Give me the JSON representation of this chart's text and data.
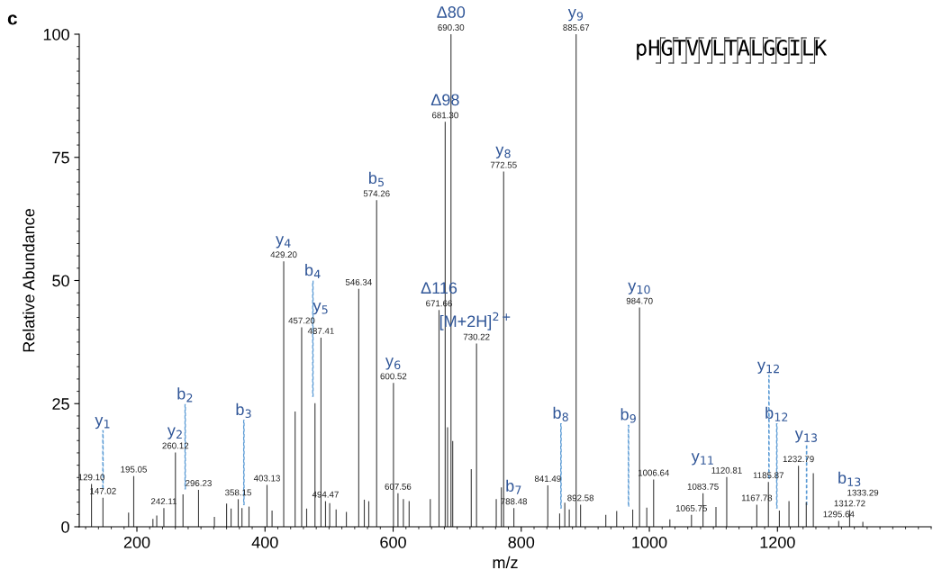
{
  "chart_data": {
    "type": "bar",
    "xlabel": "m/z",
    "ylabel": "Relative Abundance",
    "xlim": [
      110,
      1440
    ],
    "ylim": [
      0,
      100
    ],
    "xticks": [
      200,
      400,
      600,
      800,
      1000,
      1200
    ],
    "yticks": [
      0,
      25,
      50,
      75,
      100
    ],
    "grid": false,
    "series": [
      {
        "color": "#404040",
        "x": [
          129.1,
          147.02,
          187,
          195.05,
          225,
          231,
          242.11,
          260.12,
          272,
          296.23,
          321,
          340,
          347,
          358.15,
          364,
          375,
          403.13,
          411,
          429.2,
          447,
          457.2,
          465,
          478,
          487.41,
          494.47,
          501,
          511,
          527,
          546.34,
          555,
          562,
          574.26,
          600.52,
          607.56,
          616,
          625,
          658,
          671.66,
          681.3,
          685,
          690.3,
          693,
          722,
          730.22,
          761,
          769,
          772.55,
          788.48,
          841.49,
          860,
          868,
          875,
          885.67,
          892.58,
          932,
          949,
          974,
          984.7,
          996,
          1006.64,
          1032,
          1065.75,
          1083.75,
          1104,
          1120.81,
          1167.78,
          1185.87,
          1203,
          1218,
          1232.79,
          1245,
          1256,
          1295.64,
          1312.72,
          1333.29
        ],
        "values": [
          8.7,
          5.9,
          2.9,
          10.3,
          1.6,
          2.3,
          3.8,
          15.1,
          6.6,
          7.5,
          2.0,
          4.7,
          3.7,
          5.6,
          3.8,
          4.1,
          8.5,
          3.3,
          53.9,
          23.4,
          40.5,
          3.7,
          25.1,
          38.4,
          5.2,
          4.8,
          3.5,
          3.0,
          48.3,
          5.5,
          5.2,
          66.3,
          29.2,
          6.8,
          5.6,
          5.2,
          5.6,
          44.0,
          82.2,
          20.2,
          100,
          17.4,
          11.7,
          37.2,
          5.6,
          8.0,
          72.1,
          3.8,
          8.4,
          2.7,
          4.9,
          3.5,
          100,
          4.5,
          2.4,
          3.2,
          3.5,
          44.5,
          3.9,
          9.6,
          1.5,
          2.4,
          6.8,
          4.0,
          10.1,
          4.5,
          9.1,
          3.3,
          5.2,
          12.4,
          5.0,
          10.9,
          1.2,
          3.4,
          1.0
        ]
      },
      {
        "type": "bar",
        "color": "#5b9bd5",
        "line_style": "dashed",
        "x": [
          147,
          275.4,
          367,
          474.7,
          862,
          967.5,
          1186.7,
          1199,
          1245.5
        ],
        "base": [
          7.7,
          7.7,
          4.5,
          26.5,
          3.8,
          4.2,
          9.8,
          3.8,
          4.5
        ],
        "values": [
          11.8,
          17.1,
          17.1,
          23.4,
          17.1,
          16.4,
          20.9,
          17.1,
          12.2
        ]
      }
    ],
    "annotations": [
      "c",
      "pHGTVVLTALGGILK",
      {
        "text": "129.10",
        "x": 129.1,
        "y": 8.7
      },
      {
        "text": "147.02",
        "x": 147.02,
        "y": 5.9
      },
      {
        "text": "195.05",
        "x": 195.05,
        "y": 10.3
      },
      {
        "text": "242.11",
        "x": 242.11,
        "y": 3.8
      },
      {
        "text": "260.12",
        "x": 260.12,
        "y": 15.1
      },
      {
        "text": "296.23",
        "x": 296.23,
        "y": 7.5
      },
      {
        "text": "358.15",
        "x": 358.15,
        "y": 5.6
      },
      {
        "text": "403.13",
        "x": 403.13,
        "y": 8.5
      },
      {
        "text": "429.20",
        "x": 429.2,
        "y": 53.9
      },
      {
        "text": "457.20",
        "x": 457.2,
        "y": 40.5
      },
      {
        "text": "487.41",
        "x": 487.41,
        "y": 38.4
      },
      {
        "text": "494.47",
        "x": 494.47,
        "y": 5.2
      },
      {
        "text": "546.34",
        "x": 546.34,
        "y": 48.3
      },
      {
        "text": "574.26",
        "x": 574.26,
        "y": 66.3
      },
      {
        "text": "600.52",
        "x": 600.52,
        "y": 29.2
      },
      {
        "text": "607.56",
        "x": 607.56,
        "y": 6.8
      },
      {
        "text": "671.66",
        "x": 671.66,
        "y": 44.0
      },
      {
        "text": "681.30",
        "x": 681.3,
        "y": 82.2
      },
      {
        "text": "690.30",
        "x": 690.3,
        "y": 100
      },
      {
        "text": "730.22",
        "x": 730.22,
        "y": 37.2
      },
      {
        "text": "772.55",
        "x": 772.55,
        "y": 72.1
      },
      {
        "text": "788.48",
        "x": 788.48,
        "y": 3.8
      },
      {
        "text": "841.49",
        "x": 841.49,
        "y": 8.4
      },
      {
        "text": "885.67",
        "x": 885.67,
        "y": 100
      },
      {
        "text": "892.58",
        "x": 892.58,
        "y": 4.5
      },
      {
        "text": "984.70",
        "x": 984.7,
        "y": 44.5
      },
      {
        "text": "1006.64",
        "x": 1006.64,
        "y": 9.6
      },
      {
        "text": "1065.75",
        "x": 1065.75,
        "y": 2.4
      },
      {
        "text": "1083.75",
        "x": 1083.75,
        "y": 6.8
      },
      {
        "text": "1120.81",
        "x": 1120.81,
        "y": 10.1
      },
      {
        "text": "1167.78",
        "x": 1167.78,
        "y": 4.5
      },
      {
        "text": "1185.87",
        "x": 1185.87,
        "y": 9.1
      },
      {
        "text": "1232.79",
        "x": 1232.79,
        "y": 12.4
      },
      {
        "text": "1295.64",
        "x": 1295.64,
        "y": 1.2
      },
      {
        "text": "1312.72",
        "x": 1312.72,
        "y": 3.4
      },
      {
        "text": "1333.29",
        "x": 1333.29,
        "y": 1.0
      },
      {
        "text": "y$_{1}$",
        "x": 147,
        "y": 19.5
      },
      {
        "text": "y$_{2}$",
        "x": 260.12,
        "y": 15.1
      },
      {
        "text": "b$_{2}$",
        "x": 275.4,
        "y": 24.8
      },
      {
        "text": "b$_{3}$",
        "x": 367,
        "y": 21.6
      },
      {
        "text": "y$_{4}$",
        "x": 429.2,
        "y": 53.9
      },
      {
        "text": "b$_{4}$",
        "x": 474.7,
        "y": 49.9
      },
      {
        "text": "y$_{5}$",
        "x": 487.41,
        "y": 38.4
      },
      {
        "text": "b$_{5}$",
        "x": 574.26,
        "y": 66.3
      },
      {
        "text": "y$_{6}$",
        "x": 600.52,
        "y": 29.2
      },
      {
        "text": "Δ116",
        "x": 671.66,
        "y": 44.0
      },
      {
        "text": "Δ98",
        "x": 681.3,
        "y": 82.2
      },
      {
        "text": "Δ80",
        "x": 690.3,
        "y": 100
      },
      {
        "text": "[M+2H]$^{2+}$",
        "x": 730.22,
        "y": 37.2
      },
      {
        "text": "y$_{8}$",
        "x": 772.55,
        "y": 72.1
      },
      {
        "text": "b$_{7}$",
        "x": 788.48,
        "y": 3.8
      },
      {
        "text": "b$_{8}$",
        "x": 862,
        "y": 20.9
      },
      {
        "text": "y$_{9}$",
        "x": 885.67,
        "y": 100
      },
      {
        "text": "b$_{9}$",
        "x": 967.5,
        "y": 20.6
      },
      {
        "text": "y$_{10}$",
        "x": 984.7,
        "y": 44.5
      },
      {
        "text": "y$_{11}$",
        "x": 1083.75,
        "y": 6.8
      },
      {
        "text": "y$_{12}$",
        "x": 1186.7,
        "y": 30.7
      },
      {
        "text": "b$_{12}$",
        "x": 1199,
        "y": 20.9
      },
      {
        "text": "y$_{13}$",
        "x": 1245.5,
        "y": 16.7
      },
      {
        "text": "b$_{13}$",
        "x": 1312.72,
        "y": 3.4
      }
    ]
  }
}
